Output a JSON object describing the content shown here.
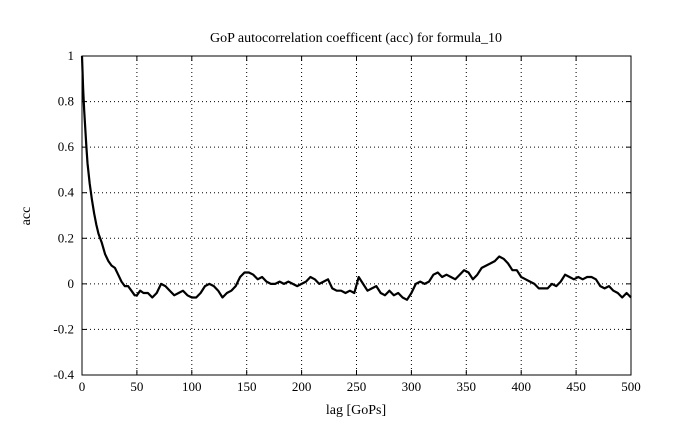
{
  "chart_data": {
    "type": "line",
    "title": "GoP autocorrelation coefficent (acc) for formula_10",
    "xlabel": "lag [GoPs]",
    "ylabel": "acc",
    "xlim": [
      0,
      500
    ],
    "ylim": [
      -0.4,
      1
    ],
    "xticks": [
      0,
      50,
      100,
      150,
      200,
      250,
      300,
      350,
      400,
      450,
      500
    ],
    "yticks": [
      -0.4,
      -0.2,
      0,
      0.2,
      0.4,
      0.6,
      0.8,
      1
    ],
    "xtick_labels": [
      "0",
      "50",
      "100",
      "150",
      "200",
      "250",
      "300",
      "350",
      "400",
      "450",
      "500"
    ],
    "ytick_labels": [
      "-0.4",
      "-0.2",
      "0",
      "0.2",
      "0.4",
      "0.6",
      "0.8",
      "1"
    ],
    "grid": true,
    "legend": "none",
    "series": [
      {
        "color": "#000000",
        "x": [
          0,
          1,
          2,
          3,
          4,
          5,
          7,
          9,
          11,
          13,
          15,
          18,
          21,
          24,
          27,
          30,
          33,
          36,
          39,
          42,
          45,
          48,
          50,
          53,
          56,
          60,
          64,
          68,
          72,
          76,
          80,
          84,
          88,
          92,
          96,
          100,
          104,
          108,
          112,
          116,
          120,
          124,
          128,
          132,
          136,
          140,
          144,
          148,
          152,
          156,
          160,
          164,
          168,
          172,
          176,
          180,
          184,
          188,
          192,
          196,
          200,
          204,
          208,
          212,
          216,
          220,
          224,
          228,
          232,
          236,
          240,
          244,
          248,
          252,
          256,
          260,
          264,
          268,
          272,
          276,
          280,
          284,
          288,
          292,
          296,
          300,
          304,
          308,
          312,
          316,
          320,
          324,
          328,
          332,
          336,
          340,
          344,
          348,
          352,
          356,
          360,
          364,
          368,
          372,
          376,
          380,
          384,
          388,
          392,
          396,
          400,
          404,
          408,
          412,
          416,
          420,
          424,
          428,
          432,
          436,
          440,
          444,
          448,
          452,
          456,
          460,
          464,
          468,
          472,
          476,
          480,
          484,
          488,
          492,
          496,
          500
        ],
        "y": [
          1.0,
          0.86,
          0.76,
          0.68,
          0.6,
          0.53,
          0.44,
          0.37,
          0.31,
          0.26,
          0.22,
          0.18,
          0.13,
          0.1,
          0.08,
          0.07,
          0.04,
          0.01,
          -0.01,
          -0.01,
          -0.03,
          -0.05,
          -0.05,
          -0.03,
          -0.04,
          -0.04,
          -0.06,
          -0.04,
          0.0,
          -0.01,
          -0.03,
          -0.05,
          -0.04,
          -0.03,
          -0.05,
          -0.06,
          -0.06,
          -0.04,
          -0.01,
          0.0,
          -0.01,
          -0.03,
          -0.06,
          -0.04,
          -0.03,
          -0.01,
          0.03,
          0.05,
          0.05,
          0.04,
          0.02,
          0.03,
          0.01,
          0.0,
          0.0,
          0.01,
          0.0,
          0.01,
          0.0,
          -0.01,
          0.0,
          0.01,
          0.03,
          0.02,
          0.0,
          0.01,
          0.02,
          -0.02,
          -0.03,
          -0.03,
          -0.04,
          -0.03,
          -0.04,
          0.03,
          0.0,
          -0.03,
          -0.02,
          -0.01,
          -0.04,
          -0.05,
          -0.03,
          -0.05,
          -0.04,
          -0.06,
          -0.07,
          -0.04,
          0.0,
          0.01,
          0.0,
          0.01,
          0.04,
          0.05,
          0.03,
          0.04,
          0.03,
          0.02,
          0.04,
          0.06,
          0.05,
          0.02,
          0.04,
          0.07,
          0.08,
          0.09,
          0.1,
          0.12,
          0.11,
          0.09,
          0.06,
          0.06,
          0.03,
          0.02,
          0.01,
          0.0,
          -0.02,
          -0.02,
          -0.02,
          0.0,
          -0.01,
          0.01,
          0.04,
          0.03,
          0.02,
          0.03,
          0.02,
          0.03,
          0.03,
          0.02,
          -0.01,
          -0.02,
          -0.01,
          -0.03,
          -0.04,
          -0.06,
          -0.04,
          -0.06
        ]
      }
    ]
  }
}
